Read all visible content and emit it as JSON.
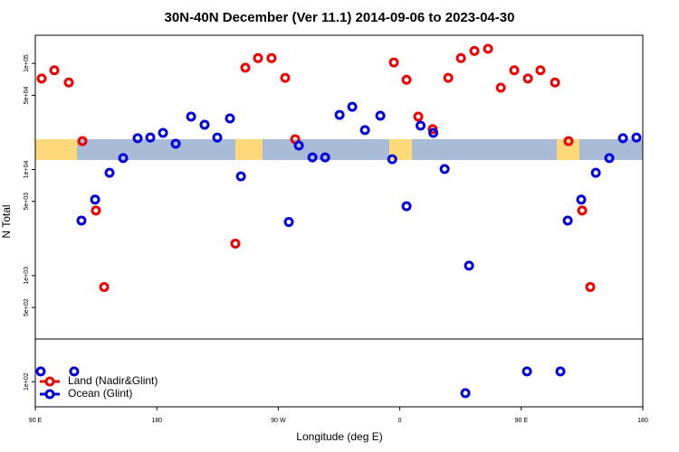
{
  "chart_data": {
    "type": "scatter",
    "title": "30N-40N December (Ver 11.1)   2014-09-06 to 2023-04-30",
    "xlabel": "Longitude (deg E)",
    "ylabel": "N Total",
    "log_y": true,
    "legend": "lower left",
    "xlim": [
      90,
      540
    ],
    "xticks": [
      {
        "value": 90,
        "label": "90 E"
      },
      {
        "value": 180,
        "label": "180"
      },
      {
        "value": 270,
        "label": "90 W"
      },
      {
        "value": 360,
        "label": "0"
      },
      {
        "value": 450,
        "label": "90 E"
      },
      {
        "value": 540,
        "label": "180"
      }
    ],
    "ylim": [
      58,
      184000
    ],
    "yticks": [
      {
        "value": 100000,
        "label": "1e+05"
      },
      {
        "value": 50000,
        "label": "5e+04"
      },
      {
        "value": 10000,
        "label": "1e+04"
      },
      {
        "value": 5000,
        "label": "5e+03"
      },
      {
        "value": 1000,
        "label": "1e+03"
      },
      {
        "value": 500,
        "label": "5e+02"
      },
      {
        "value": 100,
        "label": "1e+02"
      }
    ],
    "series": [
      {
        "name": "Land (Nadir&Glint)",
        "color": "#ee0000",
        "x": [
          94.7,
          104.1,
          114.8,
          124.9,
          134.9,
          141.0,
          238.2,
          245.6,
          255.0,
          265.0,
          275.1,
          282.5,
          355.6,
          365.0,
          373.7,
          384.4,
          395.9,
          405.3,
          415.3,
          425.4,
          434.8,
          444.8,
          454.9,
          464.2,
          475.0,
          485.0,
          495.1,
          501.1
        ],
        "values": [
          72000,
          86000,
          66000,
          18500,
          4100,
          780,
          2000,
          91000,
          112000,
          112000,
          73000,
          19300,
          102000,
          70000,
          31500,
          24000,
          73000,
          112000,
          131000,
          137000,
          59000,
          86000,
          72000,
          86000,
          66000,
          18500,
          4100,
          780
        ]
      },
      {
        "name": "Ocean (Glint)",
        "color": "#0000dd",
        "x": [
          94.0,
          118.8,
          124.2,
          134.3,
          145.0,
          155.1,
          165.8,
          175.2,
          184.6,
          194.0,
          205.4,
          215.4,
          224.8,
          234.2,
          242.3,
          277.8,
          285.2,
          295.3,
          304.7,
          315.4,
          324.8,
          334.2,
          345.6,
          354.4,
          365.0,
          375.4,
          384.8,
          393.2,
          408.6,
          411.3,
          454.2,
          479.0,
          484.4,
          494.4,
          505.2,
          515.2,
          525.3,
          535.3
        ],
        "values": [
          125,
          125,
          3300,
          5200,
          9300,
          12800,
          19700,
          20000,
          22100,
          17500,
          31500,
          26400,
          20000,
          30300,
          8600,
          3200,
          16800,
          13000,
          13000,
          32700,
          39000,
          23500,
          32100,
          12500,
          4500,
          25900,
          22100,
          10100,
          78,
          1240,
          125,
          125,
          3300,
          5200,
          9300,
          12800,
          19700,
          20000
        ]
      }
    ]
  }
}
